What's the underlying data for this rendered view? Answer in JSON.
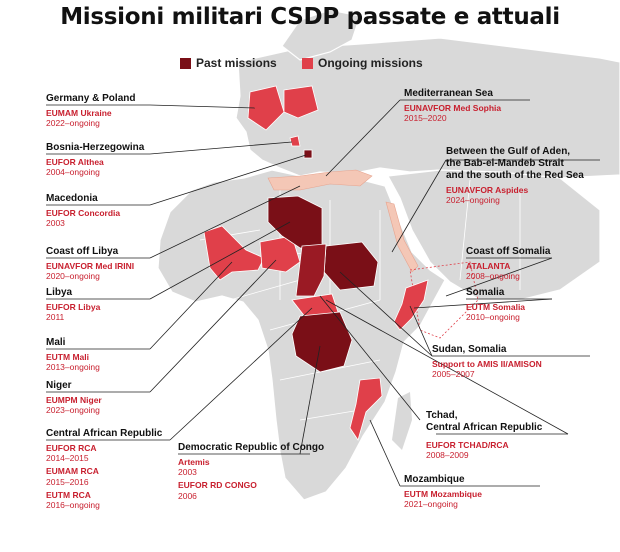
{
  "title": "Missioni militari CSDP passate e attuali",
  "legend": {
    "past": {
      "label": "Past missions",
      "color": "#7a0f17"
    },
    "ongoing": {
      "label": "Ongoing missions",
      "color": "#e0404a"
    },
    "maritime_past_color": "#f4c7b6",
    "maritime_ongoing_color": "#e7a48f"
  },
  "labels": {
    "germany_poland": {
      "region": "Germany & Poland",
      "mission": "EUMAM Ukraine",
      "years": "2022–ongoing"
    },
    "bosnia": {
      "region": "Bosnia-Herzegowina",
      "mission": "EUFOR Althea",
      "years": "2004–ongoing"
    },
    "macedonia": {
      "region": "Macedonia",
      "mission": "EUFOR Concordia",
      "years": "2003"
    },
    "coast_libya": {
      "region": "Coast off Libya",
      "mission": "EUNAVFOR Med IRINI",
      "years": "2020–ongoing"
    },
    "libya": {
      "region": "Libya",
      "mission": "EUFOR Libya",
      "years": "2011"
    },
    "mali": {
      "region": "Mali",
      "mission": "EUTM Mali",
      "years": "2013–ongoing"
    },
    "niger": {
      "region": "Niger",
      "mission": "EUMPM Niger",
      "years": "2023–ongoing"
    },
    "car": {
      "region": "Central African Republic",
      "m1": "EUFOR RCA",
      "y1": "2014–2015",
      "m2": "EUMAM RCA",
      "y2": "2015–2016",
      "m3": "EUTM RCA",
      "y3": "2016–ongoing"
    },
    "drc": {
      "region": "Democratic Republic of Congo",
      "m1": "Artemis",
      "y1": "2003",
      "m2": "EUFOR RD CONGO",
      "y2": "2006"
    },
    "mediterranean": {
      "region": "Mediterranean Sea",
      "mission": "EUNAVFOR Med Sophia",
      "years": "2015–2020"
    },
    "aden": {
      "r1": "Between the Gulf of Aden,",
      "r2": "the Bab-el-Mandeb Strait",
      "r3": "and the south of the Red Sea",
      "mission": "EUNAVFOR Aspides",
      "years": "2024–ongoing"
    },
    "coast_somalia": {
      "region": "Coast off Somalia",
      "mission": "ATALANTA",
      "years": "2008–ongoing"
    },
    "somalia": {
      "region": "Somalia",
      "mission": "EUTM Somalia",
      "years": "2010–ongoing"
    },
    "sudan_somalia": {
      "region": "Sudan, Somalia",
      "mission": "Support to AMIS II/AMISON",
      "years": "2005–2007"
    },
    "tchad": {
      "r1": "Tchad,",
      "r2": "Central African Republic",
      "mission": "EUFOR TCHAD/RCA",
      "years": "2008–2009"
    },
    "mozambique": {
      "region": "Mozambique",
      "mission": "EUTM Mozambique",
      "years": "2021–ongoing"
    }
  }
}
